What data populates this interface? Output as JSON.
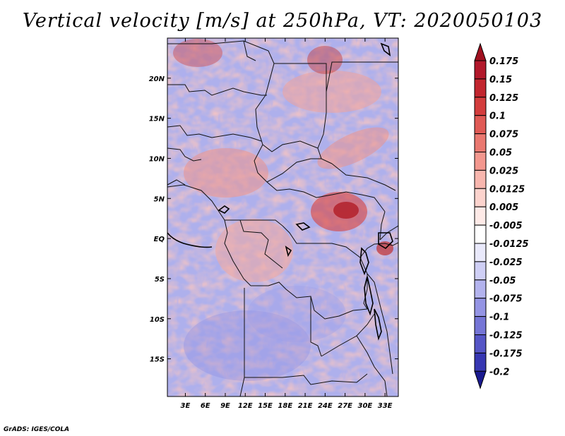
{
  "title": "Vertical velocity [m/s] at 250hPa, VT: 2020050103",
  "credit": "GrADS: IGES/COLA",
  "map": {
    "region": "Central Africa",
    "lat_labels": [
      {
        "lat": 20,
        "label": "20N"
      },
      {
        "lat": 15,
        "label": "15N"
      },
      {
        "lat": 10,
        "label": "10N"
      },
      {
        "lat": 5,
        "label": "5N"
      },
      {
        "lat": 0,
        "label": "EQ"
      },
      {
        "lat": -5,
        "label": "5S"
      },
      {
        "lat": -10,
        "label": "10S"
      },
      {
        "lat": -15,
        "label": "15S"
      }
    ],
    "lon_labels": [
      {
        "lon": 3,
        "label": "3E"
      },
      {
        "lon": 6,
        "label": "6E"
      },
      {
        "lon": 9,
        "label": "9E"
      },
      {
        "lon": 12,
        "label": "12E"
      },
      {
        "lon": 15,
        "label": "15E"
      },
      {
        "lon": 18,
        "label": "18E"
      },
      {
        "lon": 21,
        "label": "21E"
      },
      {
        "lon": 24,
        "label": "24E"
      },
      {
        "lon": 27,
        "label": "27E"
      },
      {
        "lon": 30,
        "label": "30E"
      },
      {
        "lon": 33,
        "label": "33E"
      }
    ],
    "lon_range": [
      0.3,
      35
    ],
    "lat_range": [
      -19.7,
      25
    ]
  },
  "colorbar": {
    "levels": [
      {
        "label": "0.175",
        "color": "#b2182b"
      },
      {
        "label": "0.15",
        "color": "#c2262f"
      },
      {
        "label": "0.125",
        "color": "#d33d3d"
      },
      {
        "label": "0.1",
        "color": "#e05a55"
      },
      {
        "label": "0.075",
        "color": "#ea7870"
      },
      {
        "label": "0.05",
        "color": "#f3978e"
      },
      {
        "label": "0.025",
        "color": "#f8b6ae"
      },
      {
        "label": "0.0125",
        "color": "#fcd3cd"
      },
      {
        "label": "0.005",
        "color": "#feeae7"
      },
      {
        "label": "-0.005",
        "color": "#ffffff"
      },
      {
        "label": "-0.0125",
        "color": "#e9e9fb"
      },
      {
        "label": "-0.025",
        "color": "#cfcff5"
      },
      {
        "label": "-0.05",
        "color": "#b3b3ee"
      },
      {
        "label": "-0.075",
        "color": "#9494e4"
      },
      {
        "label": "-0.1",
        "color": "#7575d6"
      },
      {
        "label": "-0.125",
        "color": "#5555c6"
      },
      {
        "label": "-0.175",
        "color": "#3737b2"
      },
      {
        "label": "-0.2",
        "color": "#20209a"
      }
    ],
    "top_color": "#a01020",
    "bottom_color": "#1a1a90"
  }
}
